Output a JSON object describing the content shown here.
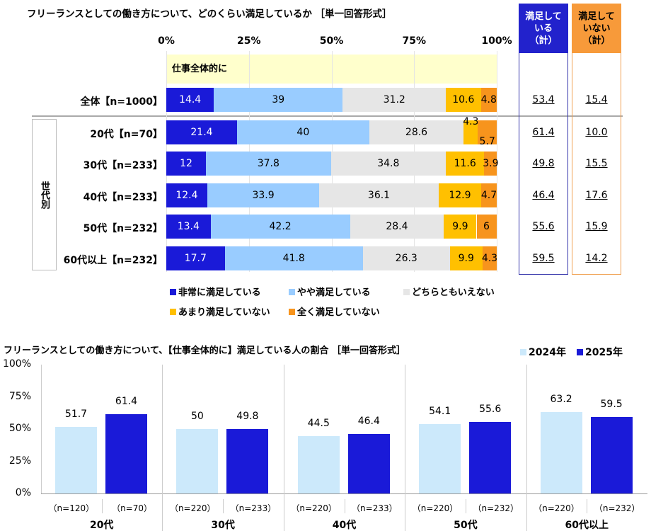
{
  "colors": {
    "very": "#1a1ad8",
    "somewhat": "#99ccff",
    "neutral": "#e6e6e6",
    "notmuch": "#ffc000",
    "notatall": "#f7941d",
    "y2024": "#cce9fb",
    "y2025": "#1a1ad8",
    "header_sat": "#2222cc",
    "header_unsat": "#f79a3a",
    "band": "#ffffcc"
  },
  "chart_data": [
    {
      "type": "bar",
      "orientation": "horizontal-stacked",
      "title": "フリーランスとしての働き方について、どのくらい満足しているか ［単一回答形式］",
      "xlim": [
        0,
        100
      ],
      "ticks": [
        "0%",
        "25%",
        "50%",
        "75%",
        "100%"
      ],
      "section_label": "仕事全体的に",
      "group_label": "世代別",
      "categories": [
        "全体【n=1000】",
        "20代【n=70】",
        "30代【n=233】",
        "40代【n=233】",
        "50代【n=232】",
        "60代以上【n=232】"
      ],
      "series": [
        {
          "name": "非常に満足している",
          "values": [
            14.4,
            21.4,
            12.0,
            12.4,
            13.4,
            17.7
          ]
        },
        {
          "name": "やや満足している",
          "values": [
            39.0,
            40.0,
            37.8,
            33.9,
            42.2,
            41.8
          ]
        },
        {
          "name": "どちらともいえない",
          "values": [
            31.2,
            28.6,
            34.8,
            36.1,
            28.4,
            26.3
          ]
        },
        {
          "name": "あまり満足していない",
          "values": [
            10.6,
            4.3,
            11.6,
            12.9,
            9.9,
            9.9
          ]
        },
        {
          "name": "全く満足していない",
          "values": [
            4.8,
            5.7,
            3.9,
            4.7,
            6.0,
            4.3
          ]
        }
      ],
      "satisfied_header": [
        "満足して",
        "いる",
        "（計）"
      ],
      "unsatisfied_header": [
        "満足して",
        "いない",
        "（計）"
      ],
      "satisfied_total": [
        "53.4",
        "61.4",
        "49.8",
        "46.4",
        "55.6",
        "59.5"
      ],
      "unsatisfied_total": [
        "15.4",
        "10.0",
        "15.5",
        "17.6",
        "15.9",
        "14.2"
      ],
      "legend_placement": "bottom"
    },
    {
      "type": "bar",
      "title": "フリーランスとしての働き方について、【仕事全体的に】満足している人の割合 ［単一回答形式］",
      "ylim": [
        0,
        100
      ],
      "yticks": [
        "100%",
        "75%",
        "50%",
        "25%",
        "0%"
      ],
      "categories": [
        "20代",
        "30代",
        "40代",
        "50代",
        "60代以上"
      ],
      "series": [
        {
          "name": "2024年",
          "values": [
            51.7,
            50.0,
            44.5,
            54.1,
            63.2
          ],
          "n": [
            "（n=120）",
            "（n=220）",
            "（n=220）",
            "（n=220）",
            "（n=220）"
          ]
        },
        {
          "name": "2025年",
          "values": [
            61.4,
            49.8,
            46.4,
            55.6,
            59.5
          ],
          "n": [
            "（n=70）",
            "（n=233）",
            "（n=233）",
            "（n=232）",
            "（n=232）"
          ]
        }
      ],
      "legend_placement": "top-right"
    }
  ]
}
